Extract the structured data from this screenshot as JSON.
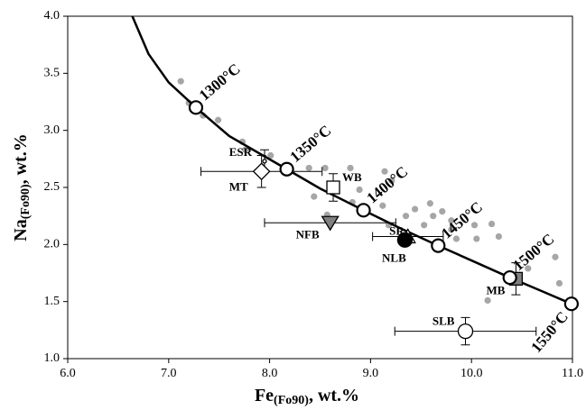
{
  "chart_data": {
    "type": "scatter",
    "x_label": {
      "main": "Fe",
      "sub": "(Fo90)",
      "unit": ", wt.%"
    },
    "y_label": {
      "main": "Na",
      "sub": "(Fo90)",
      "unit": ", wt.%"
    },
    "xlim": [
      6.0,
      11.0
    ],
    "ylim": [
      1.0,
      4.0
    ],
    "xticks": [
      {
        "value": 6,
        "label": "6.0"
      },
      {
        "value": 7,
        "label": "7.0"
      },
      {
        "value": 8,
        "label": "8.0"
      },
      {
        "value": 9,
        "label": "9.0"
      },
      {
        "value": 10,
        "label": "10.0"
      },
      {
        "value": 11,
        "label": "11.0"
      }
    ],
    "yticks": [
      {
        "value": 1,
        "label": "1.0"
      },
      {
        "value": 1.5,
        "label": "1.5"
      },
      {
        "value": 2,
        "label": "2.0"
      },
      {
        "value": 2.5,
        "label": "2.5"
      },
      {
        "value": 3,
        "label": "3.0"
      },
      {
        "value": 3.5,
        "label": "3.5"
      },
      {
        "value": 4,
        "label": "4.0"
      }
    ],
    "curve": {
      "color": "#000000",
      "x": [
        6.64,
        6.8,
        7.0,
        7.27,
        7.6,
        8.17,
        8.5,
        8.93,
        9.3,
        9.67,
        10.0,
        10.38,
        10.7,
        10.99
      ],
      "y": [
        4.0,
        3.67,
        3.42,
        3.2,
        2.95,
        2.66,
        2.49,
        2.3,
        2.14,
        1.99,
        1.86,
        1.71,
        1.59,
        1.48
      ]
    },
    "isotherms": {
      "labels": [
        "1300°C",
        "1350°C",
        "1400°C",
        "1450°C",
        "1500°C",
        "1550°C"
      ],
      "x": [
        7.27,
        8.17,
        8.93,
        9.67,
        10.38,
        10.99
      ],
      "y": [
        3.2,
        2.66,
        2.3,
        1.99,
        1.71,
        1.48
      ]
    },
    "olivine": {
      "color": "#a6a6a6",
      "x": [
        7.2,
        7.34,
        7.49,
        7.12,
        7.73,
        7.76,
        8.01,
        8.39,
        8.55,
        8.8,
        9.14,
        9.21,
        8.44,
        8.89,
        8.57,
        8.82,
        9.12,
        9.35,
        9.44,
        9.59,
        9.62,
        9.71,
        9.18,
        9.53,
        9.8,
        9.85,
        10.03,
        10.05,
        10.2,
        10.27,
        9.8,
        10.56,
        10.83,
        10.87,
        10.16
      ],
      "y": [
        3.24,
        3.13,
        3.09,
        3.43,
        2.9,
        2.83,
        2.78,
        2.67,
        2.67,
        2.67,
        2.64,
        2.56,
        2.42,
        2.48,
        2.26,
        2.37,
        2.34,
        2.25,
        2.31,
        2.36,
        2.25,
        2.29,
        2.17,
        2.17,
        2.13,
        2.05,
        2.17,
        2.05,
        2.18,
        2.07,
        2.21,
        1.79,
        1.89,
        1.66,
        1.51
      ]
    },
    "samples": [
      {
        "name": "ESR",
        "x": 7.95,
        "y": 2.73,
        "xerr": null,
        "yerr": 0.1,
        "marker": "circle-small",
        "color": "#ffffff"
      },
      {
        "name": "MT",
        "x": 7.92,
        "y": 2.64,
        "xerr": 0.6,
        "yerr": 0.14,
        "marker": "diamond",
        "color": "#ffffff"
      },
      {
        "name": "WB",
        "x": 8.63,
        "y": 2.5,
        "xerr": null,
        "yerr": 0.12,
        "marker": "square",
        "color": "#ffffff"
      },
      {
        "name": "NFB",
        "x": 8.6,
        "y": 2.19,
        "xerr": 0.65,
        "yerr": null,
        "marker": "triangle-down",
        "color": "#808080"
      },
      {
        "name": "SR",
        "x": 9.37,
        "y": 2.07,
        "xerr": 0.35,
        "yerr": null,
        "marker": "triangle-up",
        "color": "#ffffff"
      },
      {
        "name": "NLB",
        "x": 9.34,
        "y": 2.04,
        "xerr": null,
        "yerr": null,
        "marker": "circle",
        "color": "#000000"
      },
      {
        "name": "MB",
        "x": 10.44,
        "y": 1.7,
        "xerr": null,
        "yerr": 0.14,
        "marker": "square",
        "color": "#808080"
      },
      {
        "name": "SLB",
        "x": 9.94,
        "y": 1.24,
        "xerr": 0.7,
        "yerr": 0.12,
        "marker": "circle",
        "color": "#ffffff"
      }
    ]
  }
}
